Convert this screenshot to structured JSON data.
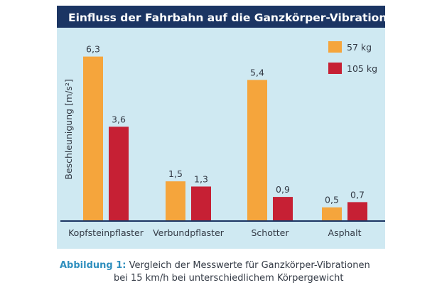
{
  "chart_data": {
    "type": "bar",
    "title": "Einfluss der Fahrbahn auf die Ganzkörper-Vibrationen",
    "ylabel": "Beschleunigung [m/s²]",
    "xlabel": "",
    "categories": [
      "Kopfsteinpflaster",
      "Verbundpflaster",
      "Schotter",
      "Asphalt"
    ],
    "series": [
      {
        "name": "57 kg",
        "values": [
          6.3,
          1.5,
          5.4,
          0.5
        ],
        "labels": [
          "6,3",
          "1,5",
          "5,4",
          "0,5"
        ],
        "color": "#f5a53c"
      },
      {
        "name": "105 kg",
        "values": [
          3.6,
          1.3,
          0.9,
          0.7
        ],
        "labels": [
          "3,6",
          "1,3",
          "0,9",
          "0,7"
        ],
        "color": "#c62034"
      }
    ],
    "ylim": [
      0,
      7
    ],
    "grid": false,
    "legend": "top-right",
    "colors": {
      "background": "#cfe9f2",
      "title_bar": "#1b3563",
      "title_text": "#ffffff",
      "axis": "#1b3563"
    }
  },
  "caption": {
    "label": "Abbildung 1:",
    "line1": "Vergleich der Messwerte für Ganzkörper-Vibrationen",
    "line2": "bei 15 km/h bei unterschiedlichem Körpergewicht"
  }
}
